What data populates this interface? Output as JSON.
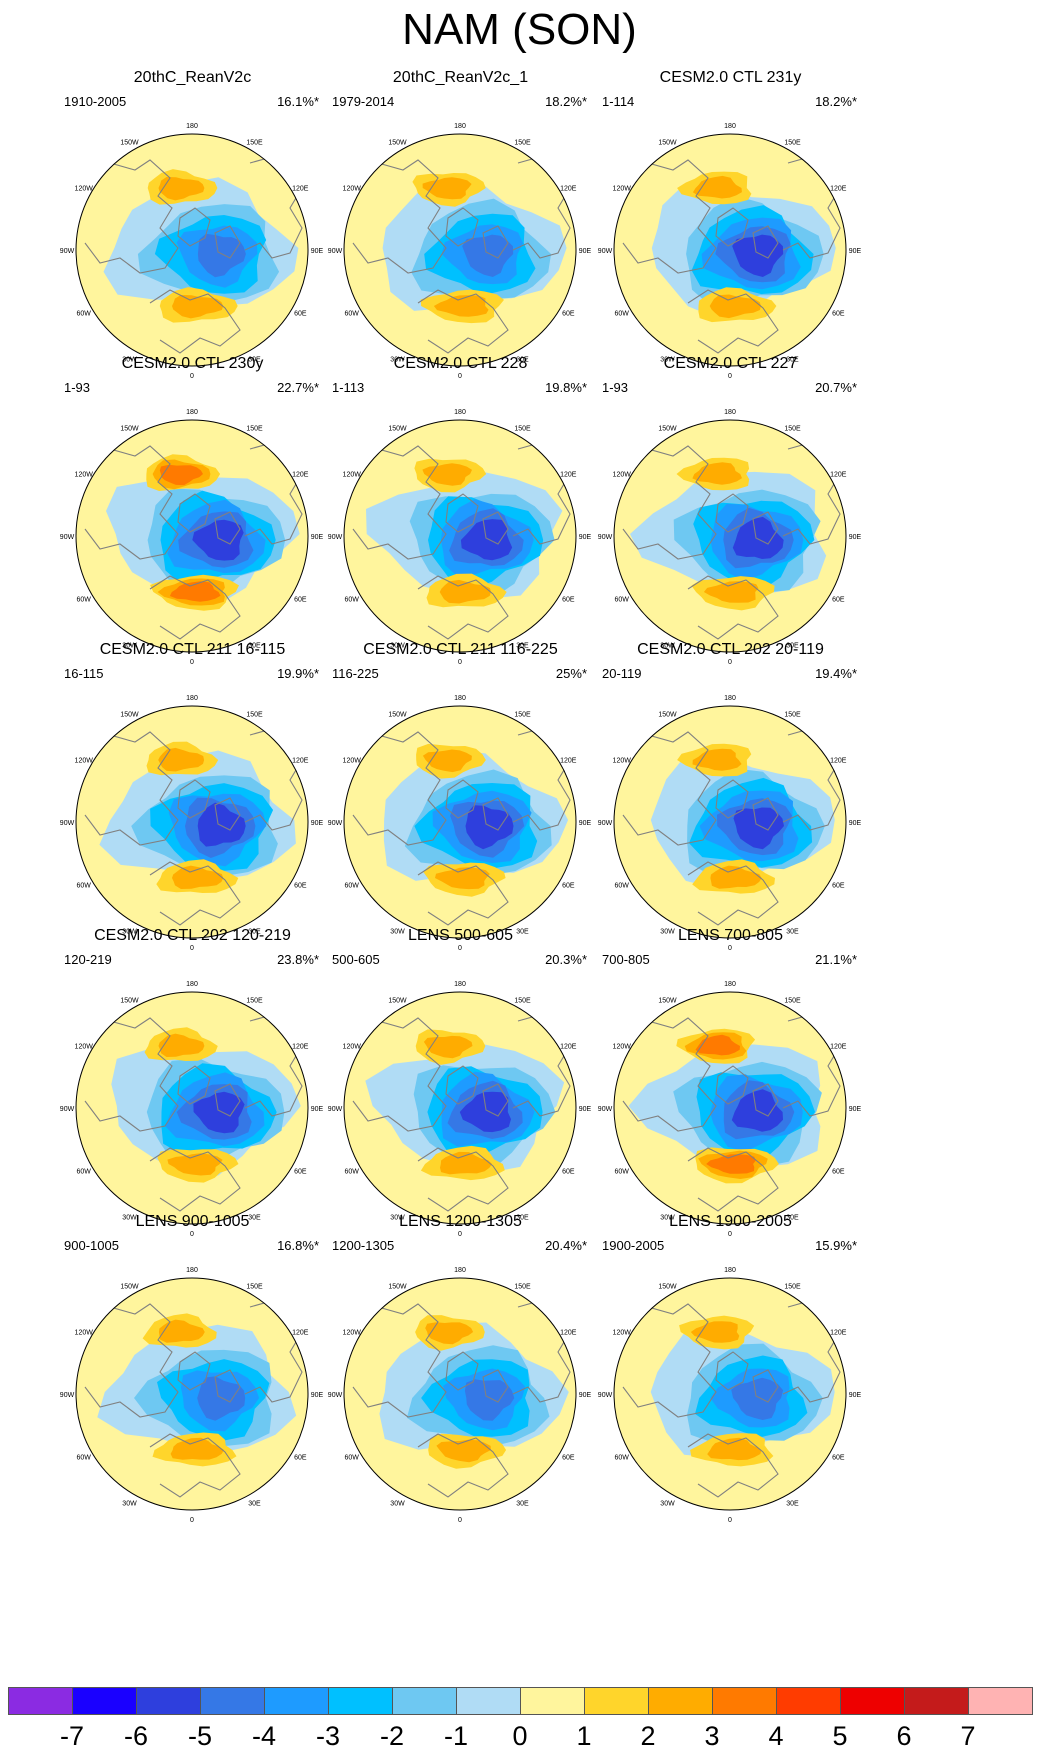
{
  "title": "NAM (SON)",
  "chart_data": {
    "type": "heatmap",
    "projection": "north-polar-stereographic",
    "longitude_labels": [
      "180",
      "150E",
      "120E",
      "90E",
      "60E",
      "30E",
      "0",
      "30W",
      "60W",
      "90W",
      "120W",
      "150W"
    ],
    "panels": [
      {
        "title": "20thC_ReanV2c",
        "period": "1910-2005",
        "variance": "16.1%*",
        "min_value": -4,
        "max_value": 2
      },
      {
        "title": "20thC_ReanV2c_1",
        "period": "1979-2014",
        "variance": "18.2%*",
        "min_value": -4,
        "max_value": 2
      },
      {
        "title": "CESM2.0 CTL 231y",
        "period": "1-114",
        "variance": "18.2%*",
        "min_value": -5,
        "max_value": 2
      },
      {
        "title": "CESM2.0 CTL 230y",
        "period": "1-93",
        "variance": "22.7%*",
        "min_value": -5,
        "max_value": 3
      },
      {
        "title": "CESM2.0 CTL 228",
        "period": "1-113",
        "variance": "19.8%*",
        "min_value": -5,
        "max_value": 2
      },
      {
        "title": "CESM2.0 CTL 227",
        "period": "1-93",
        "variance": "20.7%*",
        "min_value": -5,
        "max_value": 2
      },
      {
        "title": "CESM2.0 CTL 211 16-115",
        "period": "16-115",
        "variance": "19.9%*",
        "min_value": -5,
        "max_value": 2
      },
      {
        "title": "CESM2.0 CTL 211 116-225",
        "period": "116-225",
        "variance": "25%*",
        "min_value": -5,
        "max_value": 2
      },
      {
        "title": "CESM2.0 CTL 202 20-119",
        "period": "20-119",
        "variance": "19.4%*",
        "min_value": -5,
        "max_value": 2
      },
      {
        "title": "CESM2.0 CTL 202 120-219",
        "period": "120-219",
        "variance": "23.8%*",
        "min_value": -5,
        "max_value": 2
      },
      {
        "title": "LENS 500-605",
        "period": "500-605",
        "variance": "20.3%*",
        "min_value": -5,
        "max_value": 2
      },
      {
        "title": "LENS 700-805",
        "period": "700-805",
        "variance": "21.1%*",
        "min_value": -5,
        "max_value": 3
      },
      {
        "title": "LENS 900-1005",
        "period": "900-1005",
        "variance": "16.8%*",
        "min_value": -4,
        "max_value": 2
      },
      {
        "title": "LENS 1200-1305",
        "period": "1200-1305",
        "variance": "20.4%*",
        "min_value": -4,
        "max_value": 2
      },
      {
        "title": "LENS 1900-2005",
        "period": "1900-2005",
        "variance": "15.9%*",
        "min_value": -4,
        "max_value": 2
      }
    ],
    "colorbar": {
      "tick_labels": [
        "-7",
        "-6",
        "-5",
        "-4",
        "-3",
        "-2",
        "-1",
        "0",
        "1",
        "2",
        "3",
        "4",
        "5",
        "6",
        "7"
      ],
      "colors": [
        "#8b2be2",
        "#1a00ff",
        "#2e3fdd",
        "#3578e6",
        "#1e9bff",
        "#00c0ff",
        "#6ec8f2",
        "#b0dcf5",
        "#fff59d",
        "#ffd52b",
        "#ffac00",
        "#ff7a00",
        "#ff3c00",
        "#ee0000",
        "#c41b1b",
        "#ffb3b3"
      ]
    },
    "colors": {
      "land": "#808080",
      "border": "#000000"
    }
  }
}
